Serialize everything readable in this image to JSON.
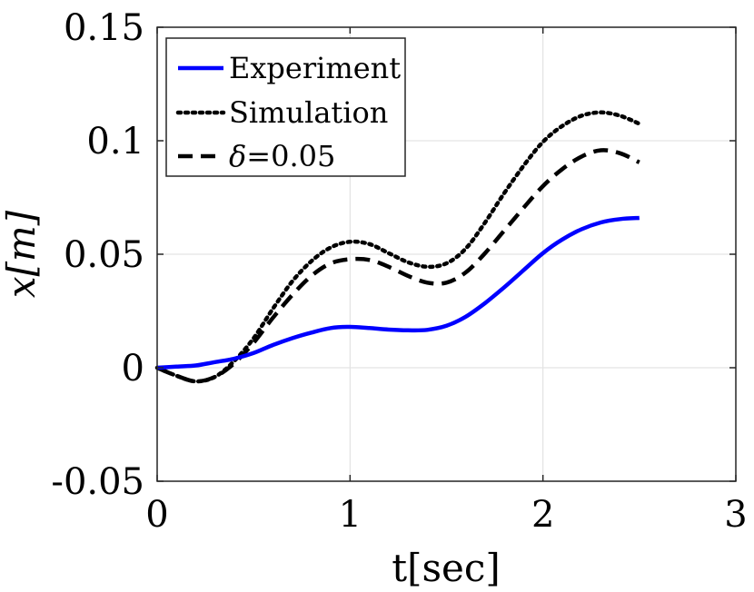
{
  "chart_data": {
    "type": "line",
    "xlabel": "t[sec]",
    "ylabel": "x[m]",
    "xlim": [
      0,
      3
    ],
    "ylim": [
      -0.05,
      0.15
    ],
    "xticks": [
      0,
      1,
      2,
      3
    ],
    "yticks": [
      -0.05,
      0,
      0.05,
      0.1,
      0.15
    ],
    "xtick_labels": [
      "0",
      "1",
      "2",
      "3"
    ],
    "ytick_labels": [
      "-0.05",
      "0",
      "0.05",
      "0.1",
      "0.15"
    ],
    "grid": true,
    "legend_position": "top-left",
    "series": [
      {
        "name": "Experiment",
        "label_text": "Experiment",
        "color": "#0000ff",
        "style": "solid",
        "x": [
          0,
          0.1,
          0.2,
          0.3,
          0.4,
          0.5,
          0.6,
          0.7,
          0.8,
          0.9,
          1.0,
          1.1,
          1.2,
          1.3,
          1.4,
          1.5,
          1.6,
          1.7,
          1.8,
          1.9,
          2.0,
          2.1,
          2.2,
          2.3,
          2.4,
          2.5
        ],
        "y": [
          0,
          0.0005,
          0.001,
          0.0025,
          0.004,
          0.0065,
          0.01,
          0.013,
          0.0155,
          0.0175,
          0.018,
          0.0175,
          0.0168,
          0.0165,
          0.0167,
          0.0185,
          0.0225,
          0.0285,
          0.0355,
          0.043,
          0.0505,
          0.0565,
          0.061,
          0.064,
          0.0655,
          0.066
        ]
      },
      {
        "name": "Simulation",
        "label_text": "Simulation",
        "color": "#000000",
        "style": "dotted",
        "x": [
          0,
          0.1,
          0.2,
          0.3,
          0.4,
          0.5,
          0.6,
          0.7,
          0.8,
          0.9,
          1.0,
          1.1,
          1.2,
          1.3,
          1.4,
          1.5,
          1.6,
          1.7,
          1.8,
          1.9,
          2.0,
          2.1,
          2.2,
          2.3,
          2.4,
          2.5
        ],
        "y": [
          0,
          -0.0035,
          -0.006,
          -0.004,
          0.003,
          0.013,
          0.026,
          0.038,
          0.047,
          0.053,
          0.0555,
          0.0545,
          0.0505,
          0.0465,
          0.0445,
          0.046,
          0.0525,
          0.064,
          0.077,
          0.089,
          0.0995,
          0.1065,
          0.111,
          0.1125,
          0.111,
          0.1075
        ]
      },
      {
        "name": "δ=0.05",
        "label_symbol": "δ",
        "label_text": "=0.05",
        "color": "#000000",
        "style": "dashed",
        "x": [
          0,
          0.1,
          0.2,
          0.3,
          0.4,
          0.5,
          0.6,
          0.7,
          0.8,
          0.9,
          1.0,
          1.1,
          1.2,
          1.3,
          1.4,
          1.5,
          1.6,
          1.7,
          1.8,
          1.9,
          2.0,
          2.1,
          2.2,
          2.3,
          2.4,
          2.5
        ],
        "y": [
          0,
          -0.0035,
          -0.006,
          -0.004,
          0.002,
          0.011,
          0.022,
          0.032,
          0.0405,
          0.046,
          0.0478,
          0.0475,
          0.0445,
          0.0405,
          0.0375,
          0.0375,
          0.042,
          0.0505,
          0.0605,
          0.0705,
          0.08,
          0.0875,
          0.093,
          0.0958,
          0.0945,
          0.0905
        ]
      }
    ]
  }
}
